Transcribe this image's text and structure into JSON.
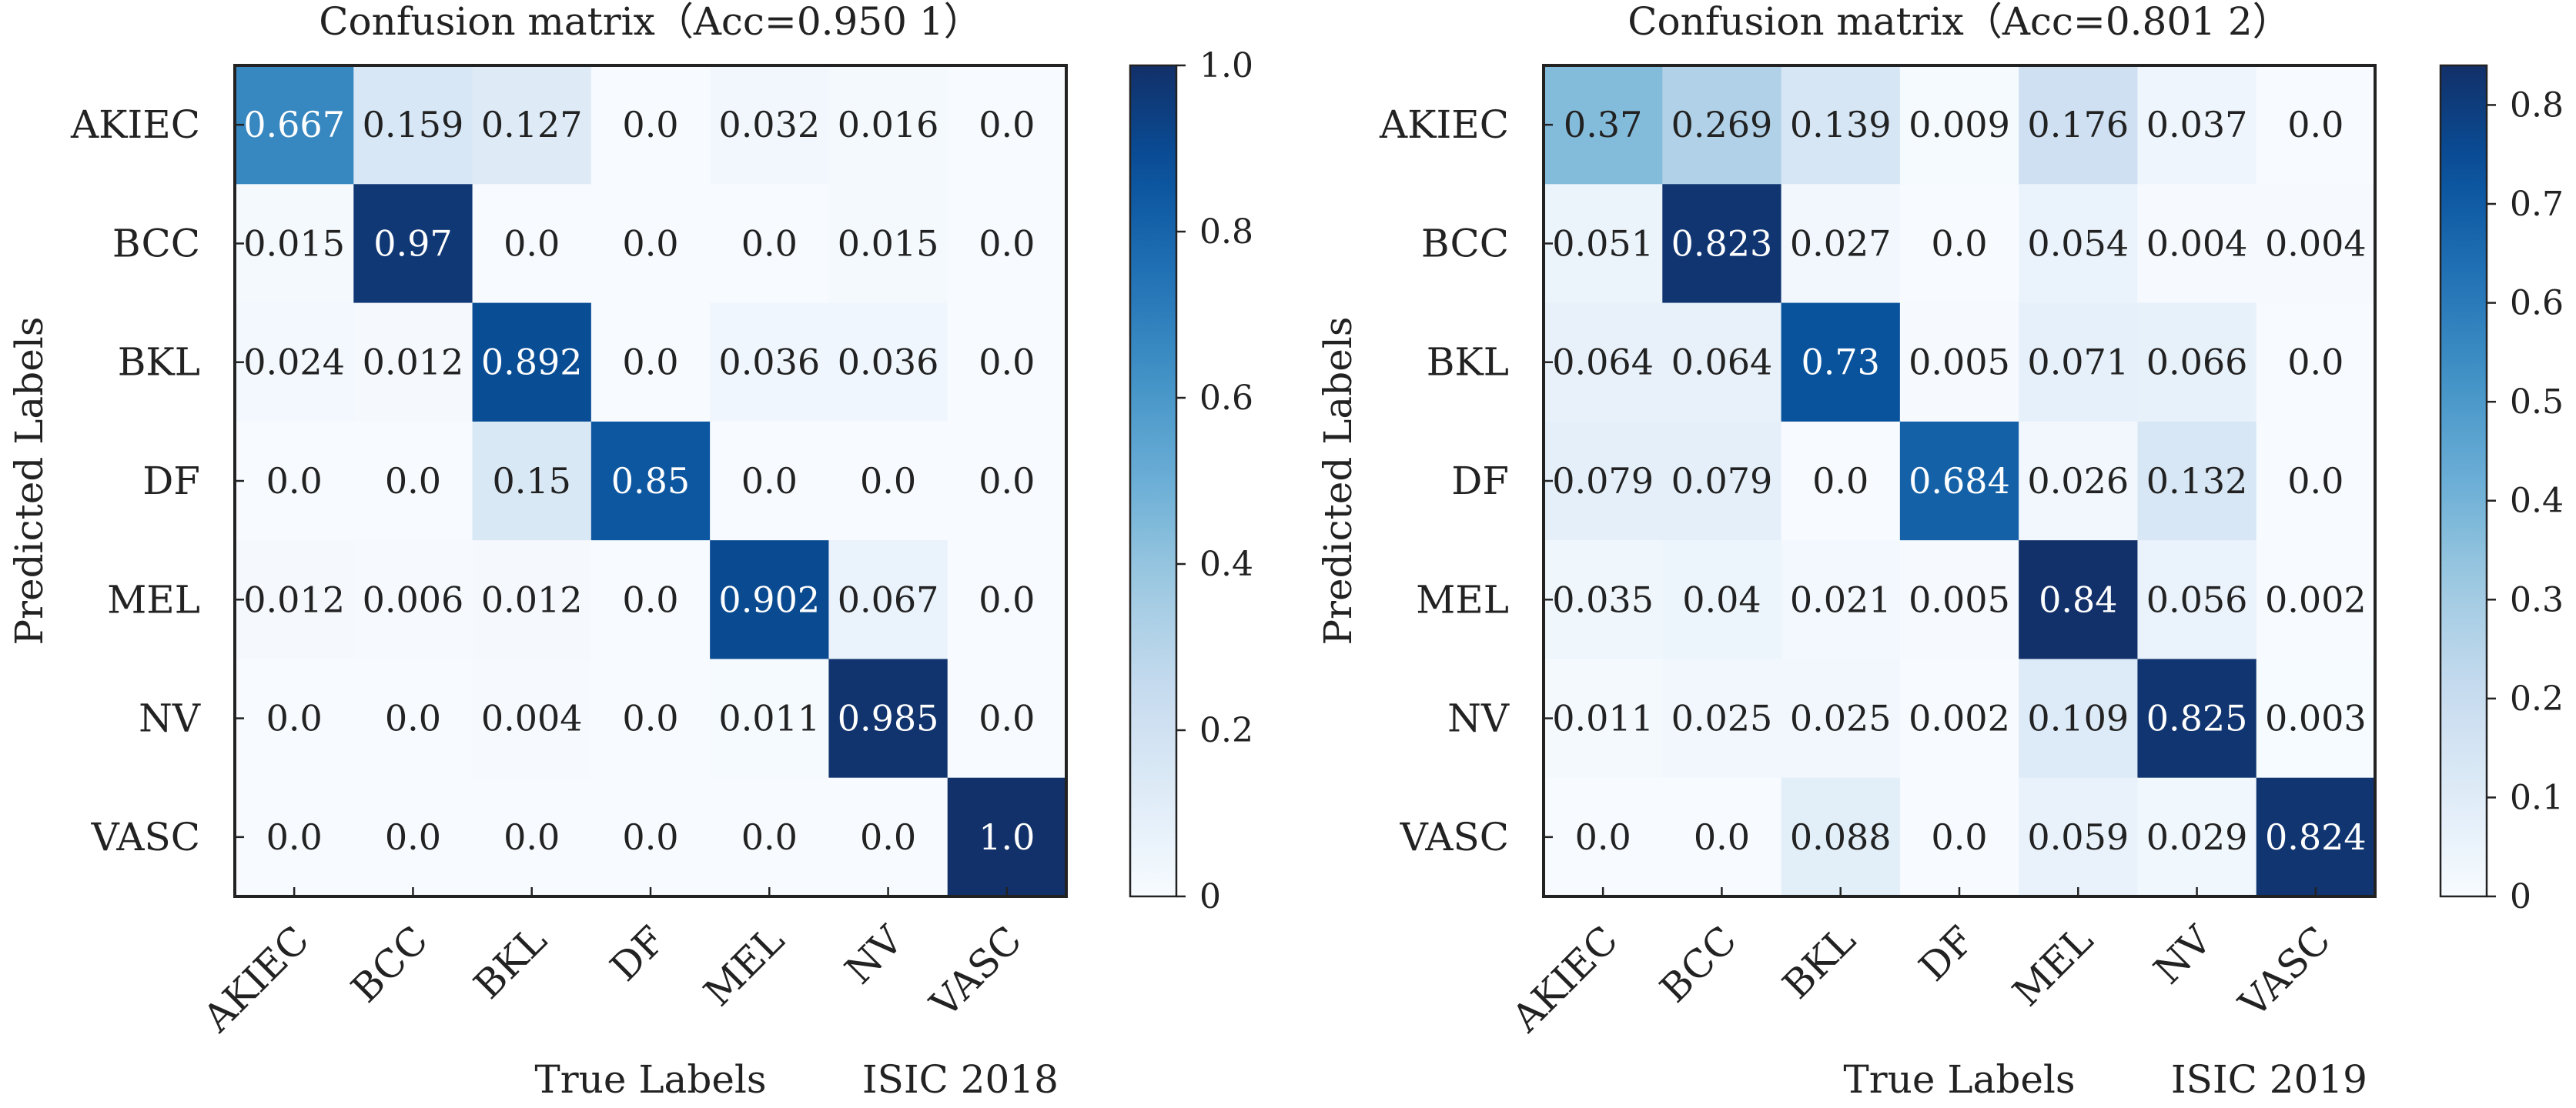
{
  "chart_data": [
    {
      "type": "heatmap",
      "title": "Confusion matrix（Acc=0.950 1）",
      "xlabel": "True Labels",
      "ylabel": "Predicted Labels",
      "dataset": "ISIC 2018",
      "labels": [
        "AKIEC",
        "BCC",
        "BKL",
        "DF",
        "MEL",
        "NV",
        "VASC"
      ],
      "cells": [
        [
          "0.667",
          "0.159",
          "0.127",
          "0.0",
          "0.032",
          "0.016",
          "0.0"
        ],
        [
          "0.015",
          "0.97",
          "0.0",
          "0.0",
          "0.0",
          "0.015",
          "0.0"
        ],
        [
          "0.024",
          "0.012",
          "0.892",
          "0.0",
          "0.036",
          "0.036",
          "0.0"
        ],
        [
          "0.0",
          "0.0",
          "0.15",
          "0.85",
          "0.0",
          "0.0",
          "0.0"
        ],
        [
          "0.012",
          "0.006",
          "0.012",
          "0.0",
          "0.902",
          "0.067",
          "0.0"
        ],
        [
          "0.0",
          "0.0",
          "0.004",
          "0.0",
          "0.011",
          "0.985",
          "0.0"
        ],
        [
          "0.0",
          "0.0",
          "0.0",
          "0.0",
          "0.0",
          "0.0",
          "1.0"
        ]
      ],
      "colorbar": {
        "min": 0,
        "max": 1.0,
        "ticks": [
          "0",
          "0.2",
          "0.4",
          "0.6",
          "0.8",
          "1.0"
        ]
      },
      "colormap": "Blues"
    },
    {
      "type": "heatmap",
      "title": "Confusion matrix（Acc=0.801 2）",
      "xlabel": "True Labels",
      "ylabel": "Predicted Labels",
      "dataset": "ISIC 2019",
      "labels": [
        "AKIEC",
        "BCC",
        "BKL",
        "DF",
        "MEL",
        "NV",
        "VASC"
      ],
      "cells": [
        [
          "0.37",
          "0.269",
          "0.139",
          "0.009",
          "0.176",
          "0.037",
          "0.0"
        ],
        [
          "0.051",
          "0.823",
          "0.027",
          "0.0",
          "0.054",
          "0.004",
          "0.004"
        ],
        [
          "0.064",
          "0.064",
          "0.73",
          "0.005",
          "0.071",
          "0.066",
          "0.0"
        ],
        [
          "0.079",
          "0.079",
          "0.0",
          "0.684",
          "0.026",
          "0.132",
          "0.0"
        ],
        [
          "0.035",
          "0.04",
          "0.021",
          "0.005",
          "0.84",
          "0.056",
          "0.002"
        ],
        [
          "0.011",
          "0.025",
          "0.025",
          "0.002",
          "0.109",
          "0.825",
          "0.003"
        ],
        [
          "0.0",
          "0.0",
          "0.088",
          "0.0",
          "0.059",
          "0.029",
          "0.824"
        ]
      ],
      "colorbar": {
        "min": 0,
        "max": 0.84,
        "ticks": [
          "0",
          "0.1",
          "0.2",
          "0.3",
          "0.4",
          "0.5",
          "0.6",
          "0.7",
          "0.8"
        ]
      },
      "colormap": "Blues"
    }
  ]
}
